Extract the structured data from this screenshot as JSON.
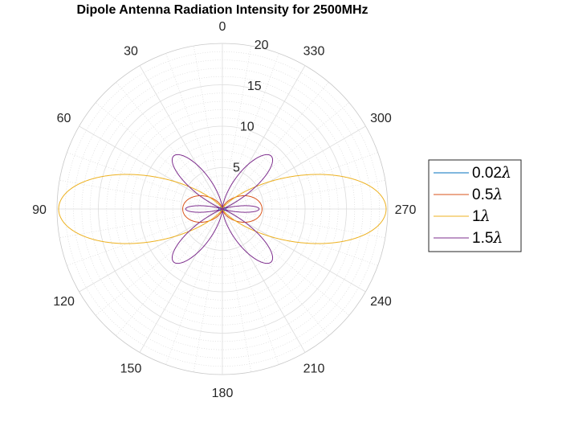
{
  "chart_data": {
    "type": "polar-line",
    "title": "Dipole Antenna Radiation Intensity for 2500MHz",
    "theta_direction": "counterclockwise",
    "theta_zero_location": "top",
    "theta_ticks": [
      0,
      30,
      60,
      90,
      120,
      150,
      180,
      210,
      240,
      270,
      300,
      330
    ],
    "theta_tick_labels": [
      "0",
      "30",
      "60",
      "90",
      "120",
      "150",
      "180",
      "210",
      "240",
      "270",
      "300",
      "330"
    ],
    "r_lim": [
      0,
      20
    ],
    "r_ticks": [
      5,
      10,
      15,
      20
    ],
    "r_tick_labels": [
      "5",
      "10",
      "15",
      "20"
    ],
    "grid": true,
    "minor_grid": true,
    "legend_position": "right",
    "series": [
      {
        "name": "0.02λ",
        "legend_text": "0.02",
        "color": "#0072BD",
        "max_value": 0.45,
        "pattern": "short-dipole"
      },
      {
        "name": "0.5λ",
        "legend_text": "0.5",
        "color": "#D95319",
        "max_value": 4.8,
        "pattern": "half-wave-dipole"
      },
      {
        "name": "1λ",
        "legend_text": "1",
        "color": "#EDB120",
        "max_value": 19.8,
        "pattern": "full-wave-dipole"
      },
      {
        "name": "1.5λ",
        "legend_text": "1.5",
        "color": "#7E2F8E",
        "max_value": 8.7,
        "pattern": "1.5-wave-dipole"
      }
    ]
  }
}
